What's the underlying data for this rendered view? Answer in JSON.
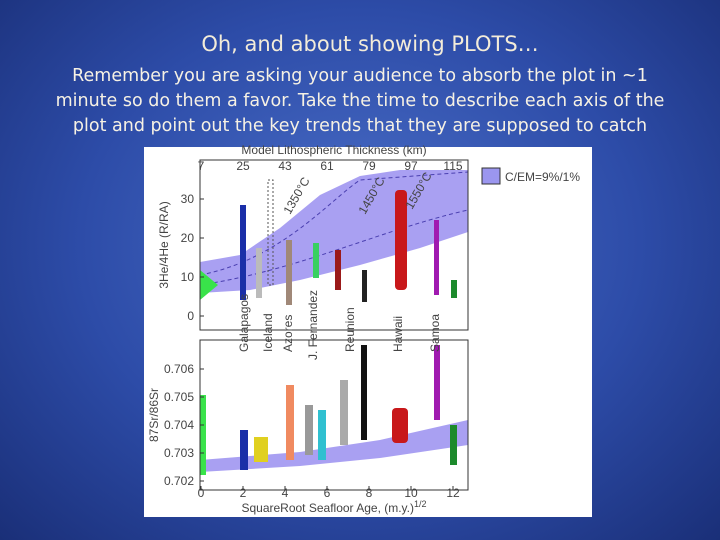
{
  "header": {
    "title": "Oh, and about showing PLOTS…"
  },
  "body": {
    "lines": [
      "Remember you are asking your audience to absorb the plot in ~1",
      "minute so do them a favor.  Take the time to describe each axis of the",
      "plot and point out the key trends that they are supposed to catch"
    ]
  },
  "figure": {
    "top_axis_label": "Model Lithospheric Thickness (km)",
    "top_ticks": [
      7,
      25,
      43,
      61,
      79,
      97,
      115
    ],
    "upper_y_label": "3He/4He (R/RA)",
    "upper_y_ticks": [
      0,
      10,
      20,
      30
    ],
    "legend": "C/EM=9%/1%",
    "isotherms": [
      "1350°C",
      "1450°C",
      "1550°C"
    ],
    "hotspots": [
      "Galapagos",
      "Iceland",
      "Azores",
      "J. Fernandez",
      "Reunion",
      "Hawaii",
      "Samoa"
    ],
    "lower_y_label": "87Sr/86Sr",
    "lower_y_ticks": [
      0.702,
      0.703,
      0.704,
      0.705,
      0.706
    ],
    "x_ticks": [
      0,
      2,
      4,
      6,
      8,
      10,
      12
    ],
    "x_label": "SquareRoot Seafloor Age, (m.y.)",
    "x_label_exponent": "1/2"
  }
}
